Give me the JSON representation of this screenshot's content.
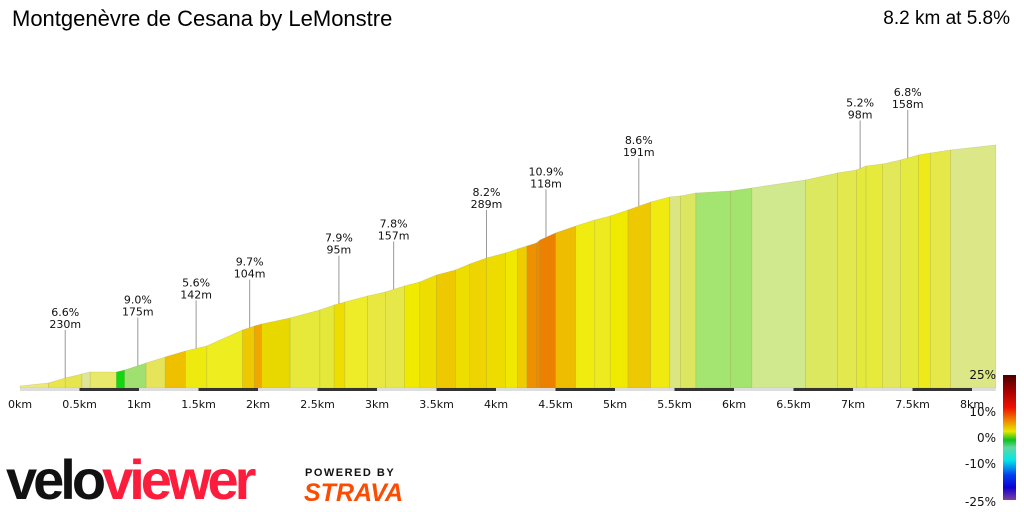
{
  "header": {
    "title": "Montgenèvre de Cesana by LeMonstre",
    "summary": "8.2 km at 5.8%"
  },
  "chart_data": {
    "type": "area",
    "xlabel": "",
    "ylabel": "",
    "xlim": [
      0,
      8.2
    ],
    "x_ticks": [
      "0km",
      "0.5km",
      "1km",
      "1.5km",
      "2km",
      "2.5km",
      "3km",
      "3.5km",
      "4km",
      "4.5km",
      "5km",
      "5.5km",
      "6km",
      "6.5km",
      "7km",
      "7.5km",
      "8km"
    ],
    "profile_km": [
      0,
      0.24,
      0.38,
      0.52,
      0.59,
      0.81,
      0.88,
      1.06,
      1.22,
      1.39,
      1.57,
      1.87,
      1.97,
      2.03,
      2.27,
      2.52,
      2.64,
      2.73,
      2.92,
      3.07,
      3.23,
      3.36,
      3.5,
      3.66,
      3.78,
      3.92,
      4.08,
      4.18,
      4.26,
      4.34,
      4.37,
      4.5,
      4.67,
      4.83,
      4.96,
      5.11,
      5.3,
      5.46,
      5.55,
      5.68,
      5.97,
      6.15,
      6.6,
      6.87,
      7.03,
      7.11,
      7.25,
      7.4,
      7.55,
      7.65,
      7.82,
      8.2
    ],
    "profile_elev_m": [
      4,
      10,
      20,
      28,
      32,
      32,
      36,
      50,
      62,
      74,
      84,
      116,
      124,
      128,
      140,
      156,
      166,
      172,
      184,
      192,
      204,
      212,
      226,
      236,
      248,
      260,
      270,
      278,
      284,
      290,
      296,
      310,
      324,
      336,
      344,
      356,
      372,
      382,
      384,
      390,
      394,
      400,
      416,
      430,
      436,
      444,
      448,
      456,
      466,
      470,
      476,
      486
    ],
    "segment_colors": [
      "#ece97a",
      "#e8e64a",
      "#e6e54e",
      "#dfe698",
      "#e8e86a",
      "#10d810",
      "#a0e070",
      "#e6e55a",
      "#eec000",
      "#eeea10",
      "#eded20",
      "#eec800",
      "#f0a800",
      "#e8d800",
      "#e6e83a",
      "#e4e838",
      "#eede00",
      "#eeec28",
      "#e8e840",
      "#e6e84a",
      "#f0ea00",
      "#eede00",
      "#eec800",
      "#eede00",
      "#eed400",
      "#eedc00",
      "#f0e800",
      "#eecc00",
      "#ee9000",
      "#ee8a00",
      "#ec8000",
      "#eebc00",
      "#f0ec10",
      "#eeea20",
      "#f0ea00",
      "#eec800",
      "#f0ea10",
      "#dce680",
      "#dce660",
      "#a4e470",
      "#a2e46e",
      "#d0e88e",
      "#dce860",
      "#e2e84e",
      "#e4ea3c",
      "#e6ea3a",
      "#e2e85a",
      "#e4ea40",
      "#eeea18",
      "#e6e84a",
      "#dce888",
      "#c4e680"
    ],
    "annotations": [
      {
        "km": 0.38,
        "grade": "6.6%",
        "length": "230m"
      },
      {
        "km": 0.99,
        "grade": "9.0%",
        "length": "175m"
      },
      {
        "km": 1.48,
        "grade": "5.6%",
        "length": "142m"
      },
      {
        "km": 1.93,
        "grade": "9.7%",
        "length": "104m"
      },
      {
        "km": 2.68,
        "grade": "7.9%",
        "length": "95m"
      },
      {
        "km": 3.14,
        "grade": "7.8%",
        "length": "157m"
      },
      {
        "km": 3.92,
        "grade": "8.2%",
        "length": "289m"
      },
      {
        "km": 4.42,
        "grade": "10.9%",
        "length": "118m"
      },
      {
        "km": 5.2,
        "grade": "8.6%",
        "length": "191m"
      },
      {
        "km": 7.06,
        "grade": "5.2%",
        "length": "98m"
      },
      {
        "km": 7.46,
        "grade": "6.8%",
        "length": "158m"
      }
    ],
    "colorbar": {
      "labels": [
        "25%",
        "10%",
        "0%",
        "-10%",
        "-25%"
      ],
      "values": [
        25,
        10,
        0,
        -10,
        -25
      ]
    }
  },
  "branding": {
    "velo": "velo",
    "viewer": "viewer",
    "powered_by": "POWERED BY",
    "strava": "STRAVA"
  },
  "colors": {
    "velo_dark": "#111111",
    "velo_red": "#fc1c3c",
    "strava_orange": "#fc4c02"
  }
}
